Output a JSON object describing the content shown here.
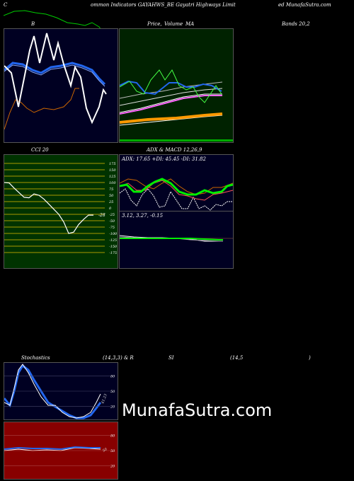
{
  "header": {
    "c": "C",
    "title": "ommon  Indicators GAYAHWS_BE Gayatri  Highways Limit",
    "site": "ed MunafaSutra.com"
  },
  "panels": {
    "bb": {
      "label": "B"
    },
    "price": {
      "label_a": "Price,",
      "label_b": "Volume",
      "label_c": "MA",
      "label_d": "Bands 20,2"
    },
    "cci": {
      "label": "CCI 20",
      "value_label": "-28",
      "ticks": [
        "175",
        "150",
        "125",
        "100",
        "75",
        "50",
        "25",
        "0",
        "-25",
        "-50",
        "-75",
        "-100",
        "-125",
        "-150",
        "-175"
      ],
      "series": [
        100,
        98,
        78,
        60,
        42,
        40,
        55,
        50,
        35,
        15,
        -5,
        -25,
        -55,
        -100,
        -95,
        -65,
        -45,
        -28,
        -28
      ]
    },
    "adx": {
      "label": "ADX  & MACD 12,26,9",
      "readout": "ADX: 17.65  +DI: 45.45 -DI: 31.82"
    },
    "macd": {
      "readout": "3.12,  3.27,  -0.15"
    },
    "stoch": {
      "label_a": "Stochastics",
      "label_b": "(14,3,3) & R",
      "label_c": "SI",
      "label_d": "(14,5",
      "label_e": ")",
      "ticks": [
        "80",
        "50",
        "20"
      ],
      "value_label": "41.23"
    },
    "rsi": {
      "ticks": [
        "80",
        "50",
        "20"
      ],
      "value_label": "50"
    }
  },
  "watermark": "MunafaSutra.com",
  "colors": {
    "bb_bg": "#000022",
    "price_bg": "#002200",
    "cci_bg": "#003300",
    "adx_bg": "#000022",
    "rsi_bg": "#880000"
  }
}
